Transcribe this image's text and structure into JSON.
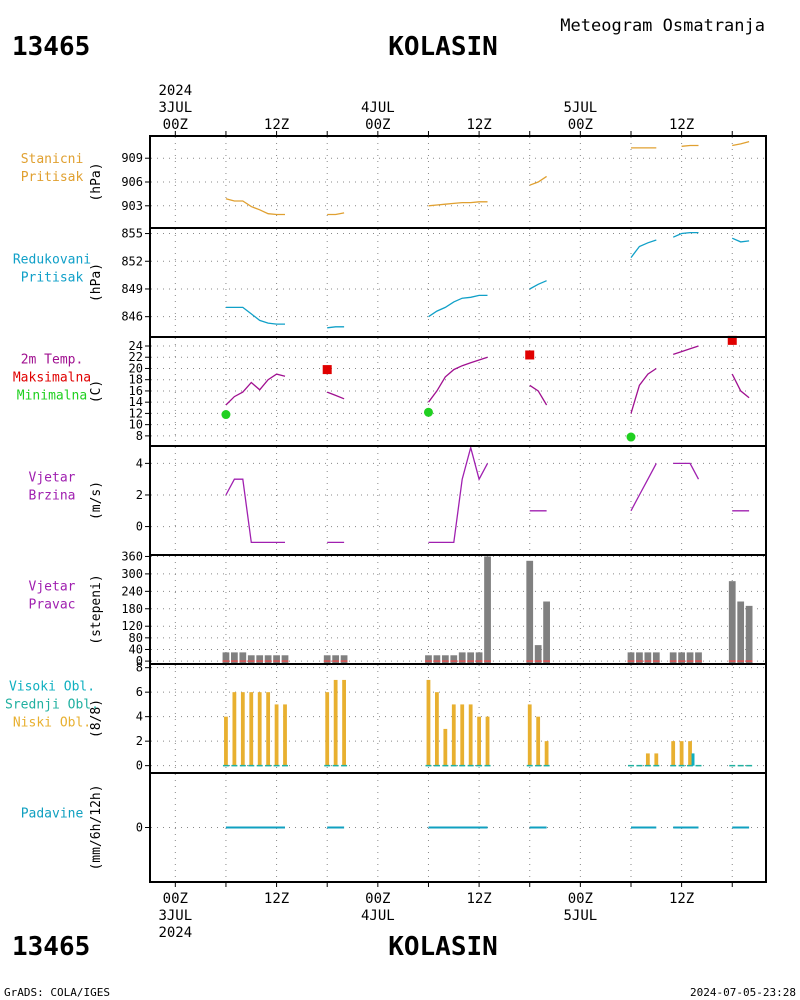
{
  "header": {
    "station_id": "13465",
    "station_name": "KOLASIN",
    "product_title": "Meteogram Osmatranja"
  },
  "footer": {
    "credit": "GrADS: COLA/IGES",
    "timestamp": "2024-07-05-23:28"
  },
  "time_axis": {
    "top_labels": [
      {
        "h": 0,
        "lines": [
          "2024",
          "3JUL",
          "00Z"
        ]
      },
      {
        "h": 12,
        "lines": [
          "12Z"
        ]
      },
      {
        "h": 24,
        "lines": [
          "4JUL",
          "00Z"
        ]
      },
      {
        "h": 36,
        "lines": [
          "12Z"
        ]
      },
      {
        "h": 48,
        "lines": [
          "5JUL",
          "00Z"
        ]
      },
      {
        "h": 60,
        "lines": [
          "12Z"
        ]
      }
    ],
    "bottom_labels": [
      {
        "h": 0,
        "lines": [
          "00Z",
          "3JUL",
          "2024"
        ]
      },
      {
        "h": 12,
        "lines": [
          "12Z"
        ]
      },
      {
        "h": 24,
        "lines": [
          "00Z",
          "4JUL"
        ]
      },
      {
        "h": 36,
        "lines": [
          "12Z"
        ]
      },
      {
        "h": 48,
        "lines": [
          "00Z",
          "5JUL"
        ]
      },
      {
        "h": 60,
        "lines": [
          "12Z"
        ]
      }
    ]
  },
  "colors": {
    "pressure": "#e0a030",
    "reduced_pressure": "#10a0c8",
    "temperature": "#a01090",
    "tmax": "#e00000",
    "tmin": "#20d020",
    "wind": "#a020b0",
    "wind_dir_bar": "#808080",
    "wind_dir_base": "#e05050",
    "cloud_low": "#e8b030",
    "cloud_mid": "#20b0a0",
    "cloud_high": "#10b0c0",
    "precip": "#10a0c0",
    "frame": "#000000",
    "grid": "#888888"
  },
  "chart_data": [
    {
      "type": "line",
      "title": "",
      "labels": [
        {
          "text": "Stanicni",
          "color": "#e0a030"
        },
        {
          "text": "Pritisak",
          "color": "#e0a030"
        }
      ],
      "ylabel": "(hPa)",
      "xlim": [
        -3,
        70
      ],
      "ylim": [
        900.2,
        911.8
      ],
      "yticks": [
        903,
        906,
        909
      ],
      "series": [
        {
          "color": "#e0a030",
          "x": [
            6,
            7,
            8,
            9,
            10,
            11,
            12,
            13
          ],
          "y": [
            903.9,
            903.6,
            903.6,
            902.9,
            902.5,
            902.0,
            901.9,
            901.9
          ]
        },
        {
          "color": "#e0a030",
          "x": [
            18,
            19,
            20
          ],
          "y": [
            901.9,
            901.9,
            902.1
          ]
        },
        {
          "color": "#e0a030",
          "x": [
            30,
            31,
            32,
            33,
            34,
            35,
            36,
            37
          ],
          "y": [
            903.0,
            903.1,
            903.2,
            903.3,
            903.4,
            903.4,
            903.5,
            903.5
          ]
        },
        {
          "color": "#e0a030",
          "x": [
            42,
            43,
            44
          ],
          "y": [
            905.6,
            906.0,
            906.7
          ]
        },
        {
          "color": "#e0a030",
          "x": [
            54,
            55,
            56,
            57
          ],
          "y": [
            910.3,
            910.3,
            910.3,
            910.3
          ]
        },
        {
          "color": "#e0a030",
          "x": [
            60,
            61,
            62
          ],
          "y": [
            910.5,
            910.6,
            910.6
          ]
        },
        {
          "color": "#e0a030",
          "x": [
            66,
            67,
            68
          ],
          "y": [
            910.6,
            910.8,
            911.1
          ]
        }
      ]
    },
    {
      "type": "line",
      "title": "",
      "labels": [
        {
          "text": "Redukovani",
          "color": "#10a0c8"
        },
        {
          "text": "Pritisak",
          "color": "#10a0c8"
        }
      ],
      "ylabel": "(hPa)",
      "xlim": [
        -3,
        70
      ],
      "ylim": [
        843.8,
        855.6
      ],
      "yticks": [
        846,
        849,
        852,
        855
      ],
      "series": [
        {
          "color": "#10a0c8",
          "x": [
            6,
            7,
            8,
            9,
            10,
            11,
            12,
            13
          ],
          "y": [
            847.0,
            847.0,
            847.0,
            846.3,
            845.6,
            845.3,
            845.2,
            845.2
          ]
        },
        {
          "color": "#10a0c8",
          "x": [
            18,
            19,
            20
          ],
          "y": [
            844.8,
            844.9,
            844.9
          ]
        },
        {
          "color": "#10a0c8",
          "x": [
            30,
            31,
            32,
            33,
            34,
            35,
            36,
            37
          ],
          "y": [
            846.0,
            846.6,
            847.0,
            847.6,
            848.0,
            848.1,
            848.3,
            848.3
          ]
        },
        {
          "color": "#10a0c8",
          "x": [
            42,
            43,
            44
          ],
          "y": [
            849.0,
            849.5,
            849.9
          ]
        },
        {
          "color": "#10a0c8",
          "x": [
            54,
            55,
            56,
            57
          ],
          "y": [
            852.4,
            853.6,
            854.0,
            854.3
          ]
        },
        {
          "color": "#10a0c8",
          "x": [
            59,
            60,
            61,
            62
          ],
          "y": [
            854.6,
            855.0,
            855.1,
            855.1
          ]
        },
        {
          "color": "#10a0c8",
          "x": [
            66,
            67,
            68
          ],
          "y": [
            854.5,
            854.1,
            854.2
          ]
        }
      ]
    },
    {
      "type": "line",
      "title": "",
      "labels": [
        {
          "text": "2m Temp.",
          "color": "#a01090"
        },
        {
          "text": "Maksimalna",
          "color": "#e00000"
        },
        {
          "text": "Minimalna",
          "color": "#20d020"
        }
      ],
      "ylabel": "(C)",
      "xlim": [
        -3,
        70
      ],
      "ylim": [
        6.2,
        25.6
      ],
      "yticks": [
        8,
        10,
        12,
        14,
        16,
        18,
        20,
        22,
        24
      ],
      "series": [
        {
          "color": "#a01090",
          "x": [
            6,
            7,
            8,
            9,
            10,
            11,
            12,
            13
          ],
          "y": [
            13.5,
            15.0,
            15.8,
            17.5,
            16.2,
            18.0,
            19.0,
            18.6
          ]
        },
        {
          "color": "#a01090",
          "x": [
            18,
            19,
            20
          ],
          "y": [
            15.8,
            15.2,
            14.6
          ]
        },
        {
          "color": "#a01090",
          "x": [
            30,
            31,
            32,
            33,
            34,
            35,
            36,
            37
          ],
          "y": [
            14.0,
            16.0,
            18.5,
            19.8,
            20.5,
            21.0,
            21.5,
            22.0
          ]
        },
        {
          "color": "#a01090",
          "x": [
            42,
            43,
            44
          ],
          "y": [
            17.0,
            16.0,
            13.5
          ]
        },
        {
          "color": "#a01090",
          "x": [
            54,
            55,
            56,
            57
          ],
          "y": [
            12.0,
            17.0,
            19.0,
            20.0
          ]
        },
        {
          "color": "#a01090",
          "x": [
            59,
            60,
            61,
            62
          ],
          "y": [
            22.5,
            23.0,
            23.5,
            24.0
          ]
        },
        {
          "color": "#a01090",
          "x": [
            66,
            67,
            68
          ],
          "y": [
            19.0,
            16.0,
            14.8
          ]
        }
      ],
      "markers": [
        {
          "name": "Maksimalna",
          "shape": "square",
          "color": "#e00000",
          "x": [
            18,
            42,
            66
          ],
          "y": [
            19.8,
            22.4,
            25.0
          ]
        },
        {
          "name": "Minimalna",
          "shape": "circle",
          "color": "#20d020",
          "x": [
            6,
            30,
            54
          ],
          "y": [
            11.8,
            12.2,
            7.8
          ]
        }
      ]
    },
    {
      "type": "line",
      "title": "",
      "labels": [
        {
          "text": "Vjetar",
          "color": "#a020b0"
        },
        {
          "text": "Brzina",
          "color": "#a020b0"
        }
      ],
      "ylabel": "(m/s)",
      "xlim": [
        -3,
        70
      ],
      "ylim": [
        -1.8,
        5.1
      ],
      "yticks": [
        0,
        2,
        4
      ],
      "series": [
        {
          "color": "#a020b0",
          "x": [
            6,
            7,
            8,
            9,
            10,
            11,
            12,
            13
          ],
          "y": [
            2,
            3,
            3,
            -1,
            -1,
            -1,
            -1,
            -1
          ]
        },
        {
          "color": "#a020b0",
          "x": [
            18,
            19,
            20
          ],
          "y": [
            -1,
            -1,
            -1
          ]
        },
        {
          "color": "#a020b0",
          "x": [
            30,
            31,
            32,
            33,
            34,
            35,
            36,
            37
          ],
          "y": [
            -1,
            -1,
            -1,
            -1,
            3,
            5,
            3,
            4
          ]
        },
        {
          "color": "#a020b0",
          "x": [
            42,
            43,
            44
          ],
          "y": [
            1,
            1,
            1
          ]
        },
        {
          "color": "#a020b0",
          "x": [
            54,
            55,
            56,
            57
          ],
          "y": [
            1,
            2,
            3,
            4
          ]
        },
        {
          "color": "#a020b0",
          "x": [
            59,
            60,
            61,
            62
          ],
          "y": [
            4,
            4,
            4,
            3
          ]
        },
        {
          "color": "#a020b0",
          "x": [
            66,
            67,
            68
          ],
          "y": [
            1,
            1,
            1
          ]
        }
      ]
    },
    {
      "type": "bar",
      "title": "",
      "labels": [
        {
          "text": "Vjetar",
          "color": "#a020b0"
        },
        {
          "text": "Pravac",
          "color": "#a020b0"
        }
      ],
      "ylabel": "(stepeni)",
      "xlim": [
        -3,
        70
      ],
      "ylim": [
        -10,
        365
      ],
      "yticks": [
        0,
        40,
        80,
        120,
        180,
        240,
        300,
        360
      ],
      "bar_width": 0.8,
      "bars": [
        {
          "x": 6,
          "y": 30
        },
        {
          "x": 7,
          "y": 30
        },
        {
          "x": 8,
          "y": 30
        },
        {
          "x": 9,
          "y": 20
        },
        {
          "x": 10,
          "y": 20
        },
        {
          "x": 11,
          "y": 20
        },
        {
          "x": 12,
          "y": 20
        },
        {
          "x": 13,
          "y": 20
        },
        {
          "x": 18,
          "y": 20
        },
        {
          "x": 19,
          "y": 20
        },
        {
          "x": 20,
          "y": 20
        },
        {
          "x": 30,
          "y": 20
        },
        {
          "x": 31,
          "y": 20
        },
        {
          "x": 32,
          "y": 20
        },
        {
          "x": 33,
          "y": 20
        },
        {
          "x": 34,
          "y": 30
        },
        {
          "x": 35,
          "y": 30
        },
        {
          "x": 36,
          "y": 30
        },
        {
          "x": 37,
          "y": 360
        },
        {
          "x": 42,
          "y": 345
        },
        {
          "x": 43,
          "y": 55
        },
        {
          "x": 44,
          "y": 205
        },
        {
          "x": 54,
          "y": 30
        },
        {
          "x": 55,
          "y": 30
        },
        {
          "x": 56,
          "y": 30
        },
        {
          "x": 57,
          "y": 30
        },
        {
          "x": 59,
          "y": 30
        },
        {
          "x": 60,
          "y": 30
        },
        {
          "x": 61,
          "y": 30
        },
        {
          "x": 62,
          "y": 30
        },
        {
          "x": 66,
          "y": 275
        },
        {
          "x": 67,
          "y": 205
        },
        {
          "x": 68,
          "y": 190
        }
      ]
    },
    {
      "type": "bar",
      "title": "",
      "labels": [
        {
          "text": "Visoki Obl.",
          "color": "#10b0c0"
        },
        {
          "text": "Srednji Obl.",
          "color": "#20b0a0"
        },
        {
          "text": "Niski Obl.",
          "color": "#e8b030"
        }
      ],
      "ylabel": "(8/8)",
      "xlim": [
        -3,
        70
      ],
      "ylim": [
        -0.6,
        8.3
      ],
      "yticks": [
        0,
        2,
        4,
        6,
        8
      ],
      "bar_width": 0.45,
      "bars": [
        {
          "x": 6,
          "y": 4
        },
        {
          "x": 7,
          "y": 6
        },
        {
          "x": 8,
          "y": 6
        },
        {
          "x": 9,
          "y": 6
        },
        {
          "x": 10,
          "y": 6
        },
        {
          "x": 11,
          "y": 6
        },
        {
          "x": 12,
          "y": 5
        },
        {
          "x": 13,
          "y": 5
        },
        {
          "x": 18,
          "y": 6
        },
        {
          "x": 19,
          "y": 7
        },
        {
          "x": 20,
          "y": 7
        },
        {
          "x": 30,
          "y": 7
        },
        {
          "x": 31,
          "y": 6
        },
        {
          "x": 32,
          "y": 3
        },
        {
          "x": 33,
          "y": 5
        },
        {
          "x": 34,
          "y": 5
        },
        {
          "x": 35,
          "y": 5
        },
        {
          "x": 36,
          "y": 4
        },
        {
          "x": 37,
          "y": 4
        },
        {
          "x": 42,
          "y": 5
        },
        {
          "x": 43,
          "y": 4
        },
        {
          "x": 44,
          "y": 2
        },
        {
          "x": 54,
          "y": 0
        },
        {
          "x": 55,
          "y": 0
        },
        {
          "x": 56,
          "y": 1
        },
        {
          "x": 57,
          "y": 1
        },
        {
          "x": 59,
          "y": 2
        },
        {
          "x": 60,
          "y": 2
        },
        {
          "x": 61,
          "y": 2
        },
        {
          "x": 62,
          "y": 0
        },
        {
          "x": 66,
          "y": 0
        },
        {
          "x": 67,
          "y": 0
        },
        {
          "x": 68,
          "y": 0
        }
      ],
      "mid_bars": [
        {
          "x": 61.35,
          "y": 1
        }
      ]
    },
    {
      "type": "line",
      "title": "",
      "labels": [
        {
          "text": "Padavine",
          "color": "#10a0c0"
        }
      ],
      "ylabel": "(mm/6h/12h)",
      "xlim": [
        -3,
        70
      ],
      "ylim": [
        -5,
        5
      ],
      "yticks": [
        0
      ],
      "series": [
        {
          "color": "#10a0c0",
          "x": [
            6,
            13
          ],
          "y": [
            0,
            0
          ]
        },
        {
          "color": "#10a0c0",
          "x": [
            18,
            20
          ],
          "y": [
            0,
            0
          ]
        },
        {
          "color": "#10a0c0",
          "x": [
            30,
            37
          ],
          "y": [
            0,
            0
          ]
        },
        {
          "color": "#10a0c0",
          "x": [
            42,
            44
          ],
          "y": [
            0,
            0
          ]
        },
        {
          "color": "#10a0c0",
          "x": [
            54,
            57
          ],
          "y": [
            0,
            0
          ]
        },
        {
          "color": "#10a0c0",
          "x": [
            59,
            62
          ],
          "y": [
            0,
            0
          ]
        },
        {
          "color": "#10a0c0",
          "x": [
            66,
            68
          ],
          "y": [
            0,
            0
          ]
        }
      ]
    }
  ]
}
